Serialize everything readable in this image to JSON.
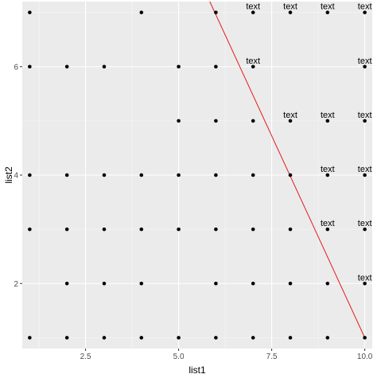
{
  "chart_data": {
    "type": "scatter",
    "xlabel": "list1",
    "ylabel": "list2",
    "xlim": [
      0.8,
      10.2
    ],
    "ylim": [
      0.8,
      7.2
    ],
    "x_ticks": [
      2.5,
      5.0,
      7.5,
      10.0
    ],
    "x_tick_labels": [
      "2.5",
      "5.0",
      "7.5",
      "10.0"
    ],
    "x_minor_ticks": [
      1.25,
      3.75,
      6.25,
      8.75
    ],
    "y_ticks": [
      2,
      4,
      6
    ],
    "y_tick_labels": [
      "2",
      "4",
      "6"
    ],
    "y_minor_ticks": [
      1,
      3,
      5,
      7
    ],
    "grid": true,
    "background": "#ebebeb",
    "point_color": "#000000",
    "line_color": "#e41a1c",
    "points": [
      {
        "x": 1,
        "y": 7
      },
      {
        "x": 4,
        "y": 7
      },
      {
        "x": 6,
        "y": 7
      },
      {
        "x": 7,
        "y": 7
      },
      {
        "x": 8,
        "y": 7
      },
      {
        "x": 9,
        "y": 7
      },
      {
        "x": 10,
        "y": 7
      },
      {
        "x": 1,
        "y": 6
      },
      {
        "x": 2,
        "y": 6
      },
      {
        "x": 3,
        "y": 6
      },
      {
        "x": 5,
        "y": 6
      },
      {
        "x": 6,
        "y": 6
      },
      {
        "x": 7,
        "y": 6
      },
      {
        "x": 10,
        "y": 6
      },
      {
        "x": 5,
        "y": 5
      },
      {
        "x": 6,
        "y": 5
      },
      {
        "x": 7,
        "y": 5
      },
      {
        "x": 8,
        "y": 5
      },
      {
        "x": 9,
        "y": 5
      },
      {
        "x": 10,
        "y": 5
      },
      {
        "x": 1,
        "y": 4
      },
      {
        "x": 2,
        "y": 4
      },
      {
        "x": 3,
        "y": 4
      },
      {
        "x": 4,
        "y": 4
      },
      {
        "x": 5,
        "y": 4
      },
      {
        "x": 6,
        "y": 4
      },
      {
        "x": 7,
        "y": 4
      },
      {
        "x": 8,
        "y": 4
      },
      {
        "x": 9,
        "y": 4
      },
      {
        "x": 10,
        "y": 4
      },
      {
        "x": 1,
        "y": 3
      },
      {
        "x": 2,
        "y": 3
      },
      {
        "x": 3,
        "y": 3
      },
      {
        "x": 4,
        "y": 3
      },
      {
        "x": 5,
        "y": 3
      },
      {
        "x": 6,
        "y": 3
      },
      {
        "x": 7,
        "y": 3
      },
      {
        "x": 8,
        "y": 3
      },
      {
        "x": 9,
        "y": 3
      },
      {
        "x": 10,
        "y": 3
      },
      {
        "x": 2,
        "y": 2
      },
      {
        "x": 3,
        "y": 2
      },
      {
        "x": 4,
        "y": 2
      },
      {
        "x": 6,
        "y": 2
      },
      {
        "x": 7,
        "y": 2
      },
      {
        "x": 8,
        "y": 2
      },
      {
        "x": 9,
        "y": 2
      },
      {
        "x": 10,
        "y": 2
      },
      {
        "x": 1,
        "y": 1
      },
      {
        "x": 2,
        "y": 1
      },
      {
        "x": 3,
        "y": 1
      },
      {
        "x": 4,
        "y": 1
      },
      {
        "x": 5,
        "y": 1
      },
      {
        "x": 6,
        "y": 1
      },
      {
        "x": 7,
        "y": 1
      },
      {
        "x": 8,
        "y": 1
      },
      {
        "x": 9,
        "y": 1
      },
      {
        "x": 10,
        "y": 1
      }
    ],
    "annotations": [
      {
        "x": 7,
        "y": 7,
        "label": "text"
      },
      {
        "x": 8,
        "y": 7,
        "label": "text"
      },
      {
        "x": 9,
        "y": 7,
        "label": "text"
      },
      {
        "x": 10,
        "y": 7,
        "label": "text"
      },
      {
        "x": 7,
        "y": 6,
        "label": "text"
      },
      {
        "x": 10,
        "y": 6,
        "label": "text"
      },
      {
        "x": 8,
        "y": 5,
        "label": "text"
      },
      {
        "x": 9,
        "y": 5,
        "label": "text"
      },
      {
        "x": 10,
        "y": 5,
        "label": "text"
      },
      {
        "x": 9,
        "y": 4,
        "label": "text"
      },
      {
        "x": 10,
        "y": 4,
        "label": "text"
      },
      {
        "x": 9,
        "y": 3,
        "label": "text"
      },
      {
        "x": 10,
        "y": 3,
        "label": "text"
      },
      {
        "x": 10,
        "y": 2,
        "label": "text"
      }
    ],
    "line": {
      "x1": 5.77,
      "y1": 7.3,
      "x2": 10.0,
      "y2": 1.0
    }
  }
}
